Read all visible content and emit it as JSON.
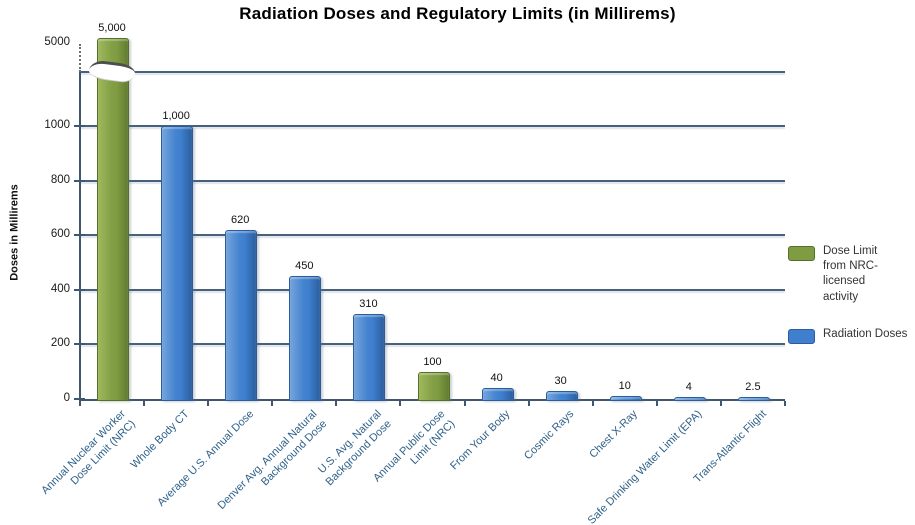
{
  "chart_data": {
    "type": "bar",
    "title": "Radiation Doses and Regulatory Limits (in Millirems)",
    "ylabel": "Doses in Millirems",
    "xlabel": "",
    "grid": true,
    "ylim": [
      0,
      1200
    ],
    "yticks": [
      0,
      200,
      400,
      600,
      800,
      1000
    ],
    "axis_break": {
      "enabled": true,
      "tick_label": "5000"
    },
    "categories": [
      "Annual Nuclear Worker\nDose Limit (NRC)",
      "Whole Body CT",
      "Average U.S. Annual Dose",
      "Denver Avg. Annual Natural\nBackground Dose",
      "U.S. Avg. Natural\nBackground Dose",
      "Annual Public Dose\nLimit (NRC)",
      "From Your Body",
      "Cosmic Rays",
      "Chest X-Ray",
      "Safe Drinking Water Limit (EPA)",
      "Trans-Atlantic Flight"
    ],
    "values": [
      5000,
      1000,
      620,
      450,
      310,
      100,
      40,
      30,
      10,
      4,
      2.5
    ],
    "value_labels": [
      "5,000",
      "1,000",
      "620",
      "450",
      "310",
      "100",
      "40",
      "30",
      "10",
      "4",
      "2.5"
    ],
    "bar_series": [
      "limit",
      "dose",
      "dose",
      "dose",
      "dose",
      "limit",
      "dose",
      "dose",
      "dose",
      "dose",
      "dose"
    ],
    "legend": {
      "position": "right",
      "entries": [
        {
          "key": "limit",
          "label": "Dose Limit\nfrom NRC-licensed\nactivity",
          "color": "#7F9C42"
        },
        {
          "key": "dose",
          "label": "Radiation Doses",
          "color": "#3F7FCE"
        }
      ]
    },
    "colors": {
      "limit_bar": "#7F9C42",
      "dose_bar": "#3F7FCE",
      "gridline": "#46617C",
      "category_label": "#2F6189",
      "tick_label": "#1A1A1A",
      "title": "#000000"
    }
  }
}
